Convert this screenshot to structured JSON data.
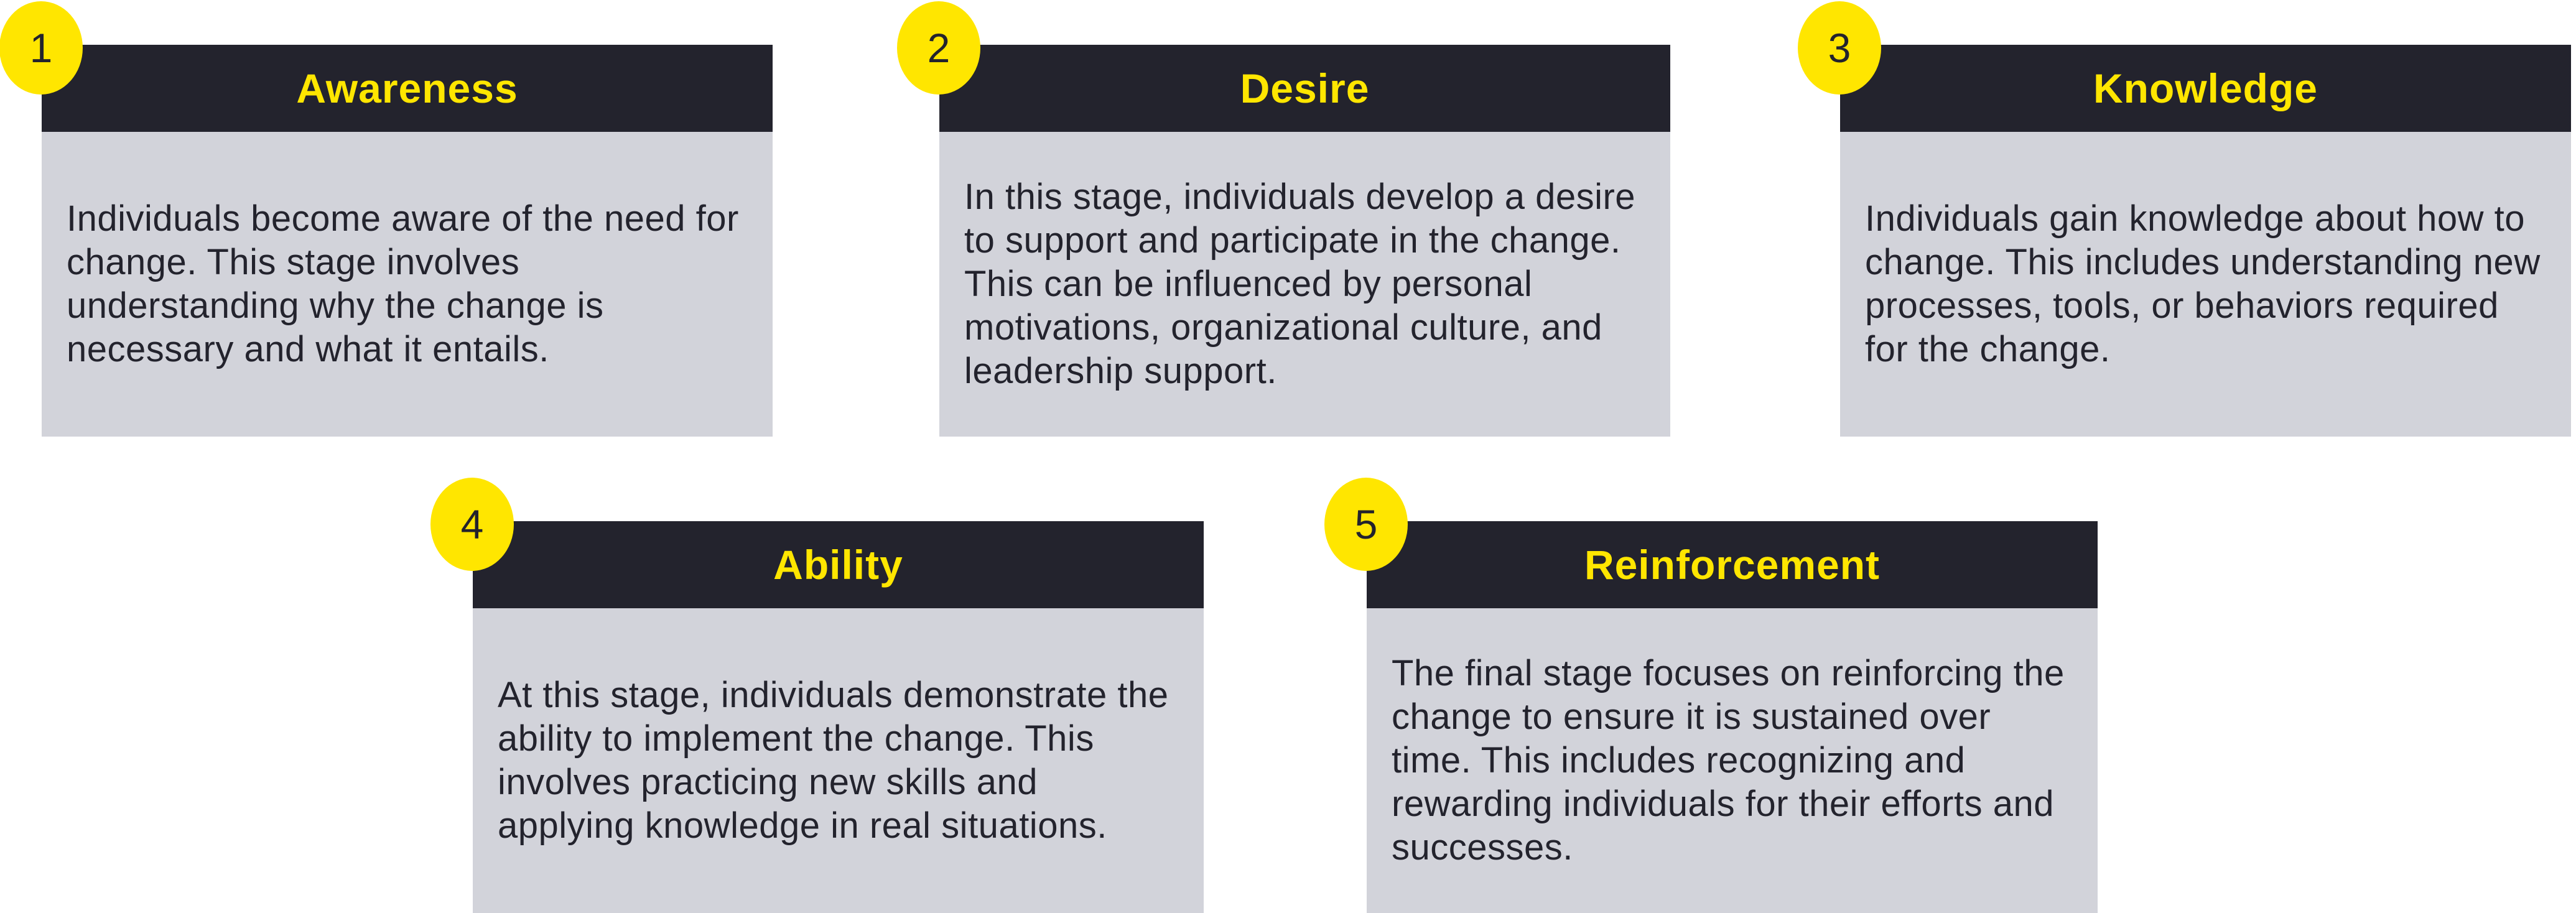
{
  "stages": [
    {
      "number": "1",
      "title": "Awareness",
      "description": "Individuals become aware of the need for change. This stage involves understanding why the change is necessary and what it entails."
    },
    {
      "number": "2",
      "title": "Desire",
      "description": "In this stage, individuals develop a desire to support and participate in the change. This can be influenced by personal motivations, organizational culture, and leadership support."
    },
    {
      "number": "3",
      "title": "Knowledge",
      "description": "Individuals gain knowledge about how to change. This includes understanding new processes, tools, or behaviors required for the change."
    },
    {
      "number": "4",
      "title": "Ability",
      "description": "At this stage, individuals demonstrate the ability to implement the change. This involves practicing new skills and applying knowledge in real situations."
    },
    {
      "number": "5",
      "title": "Reinforcement",
      "description": "The final stage focuses on reinforcing the change to ensure it is sustained over time. This includes recognizing and rewarding individuals for their efforts and successes."
    }
  ],
  "colors": {
    "header_bg": "#23232d",
    "title_text": "#ffe600",
    "badge_bg": "#ffe600",
    "body_bg": "#d2d3da",
    "body_text": "#23232d"
  }
}
